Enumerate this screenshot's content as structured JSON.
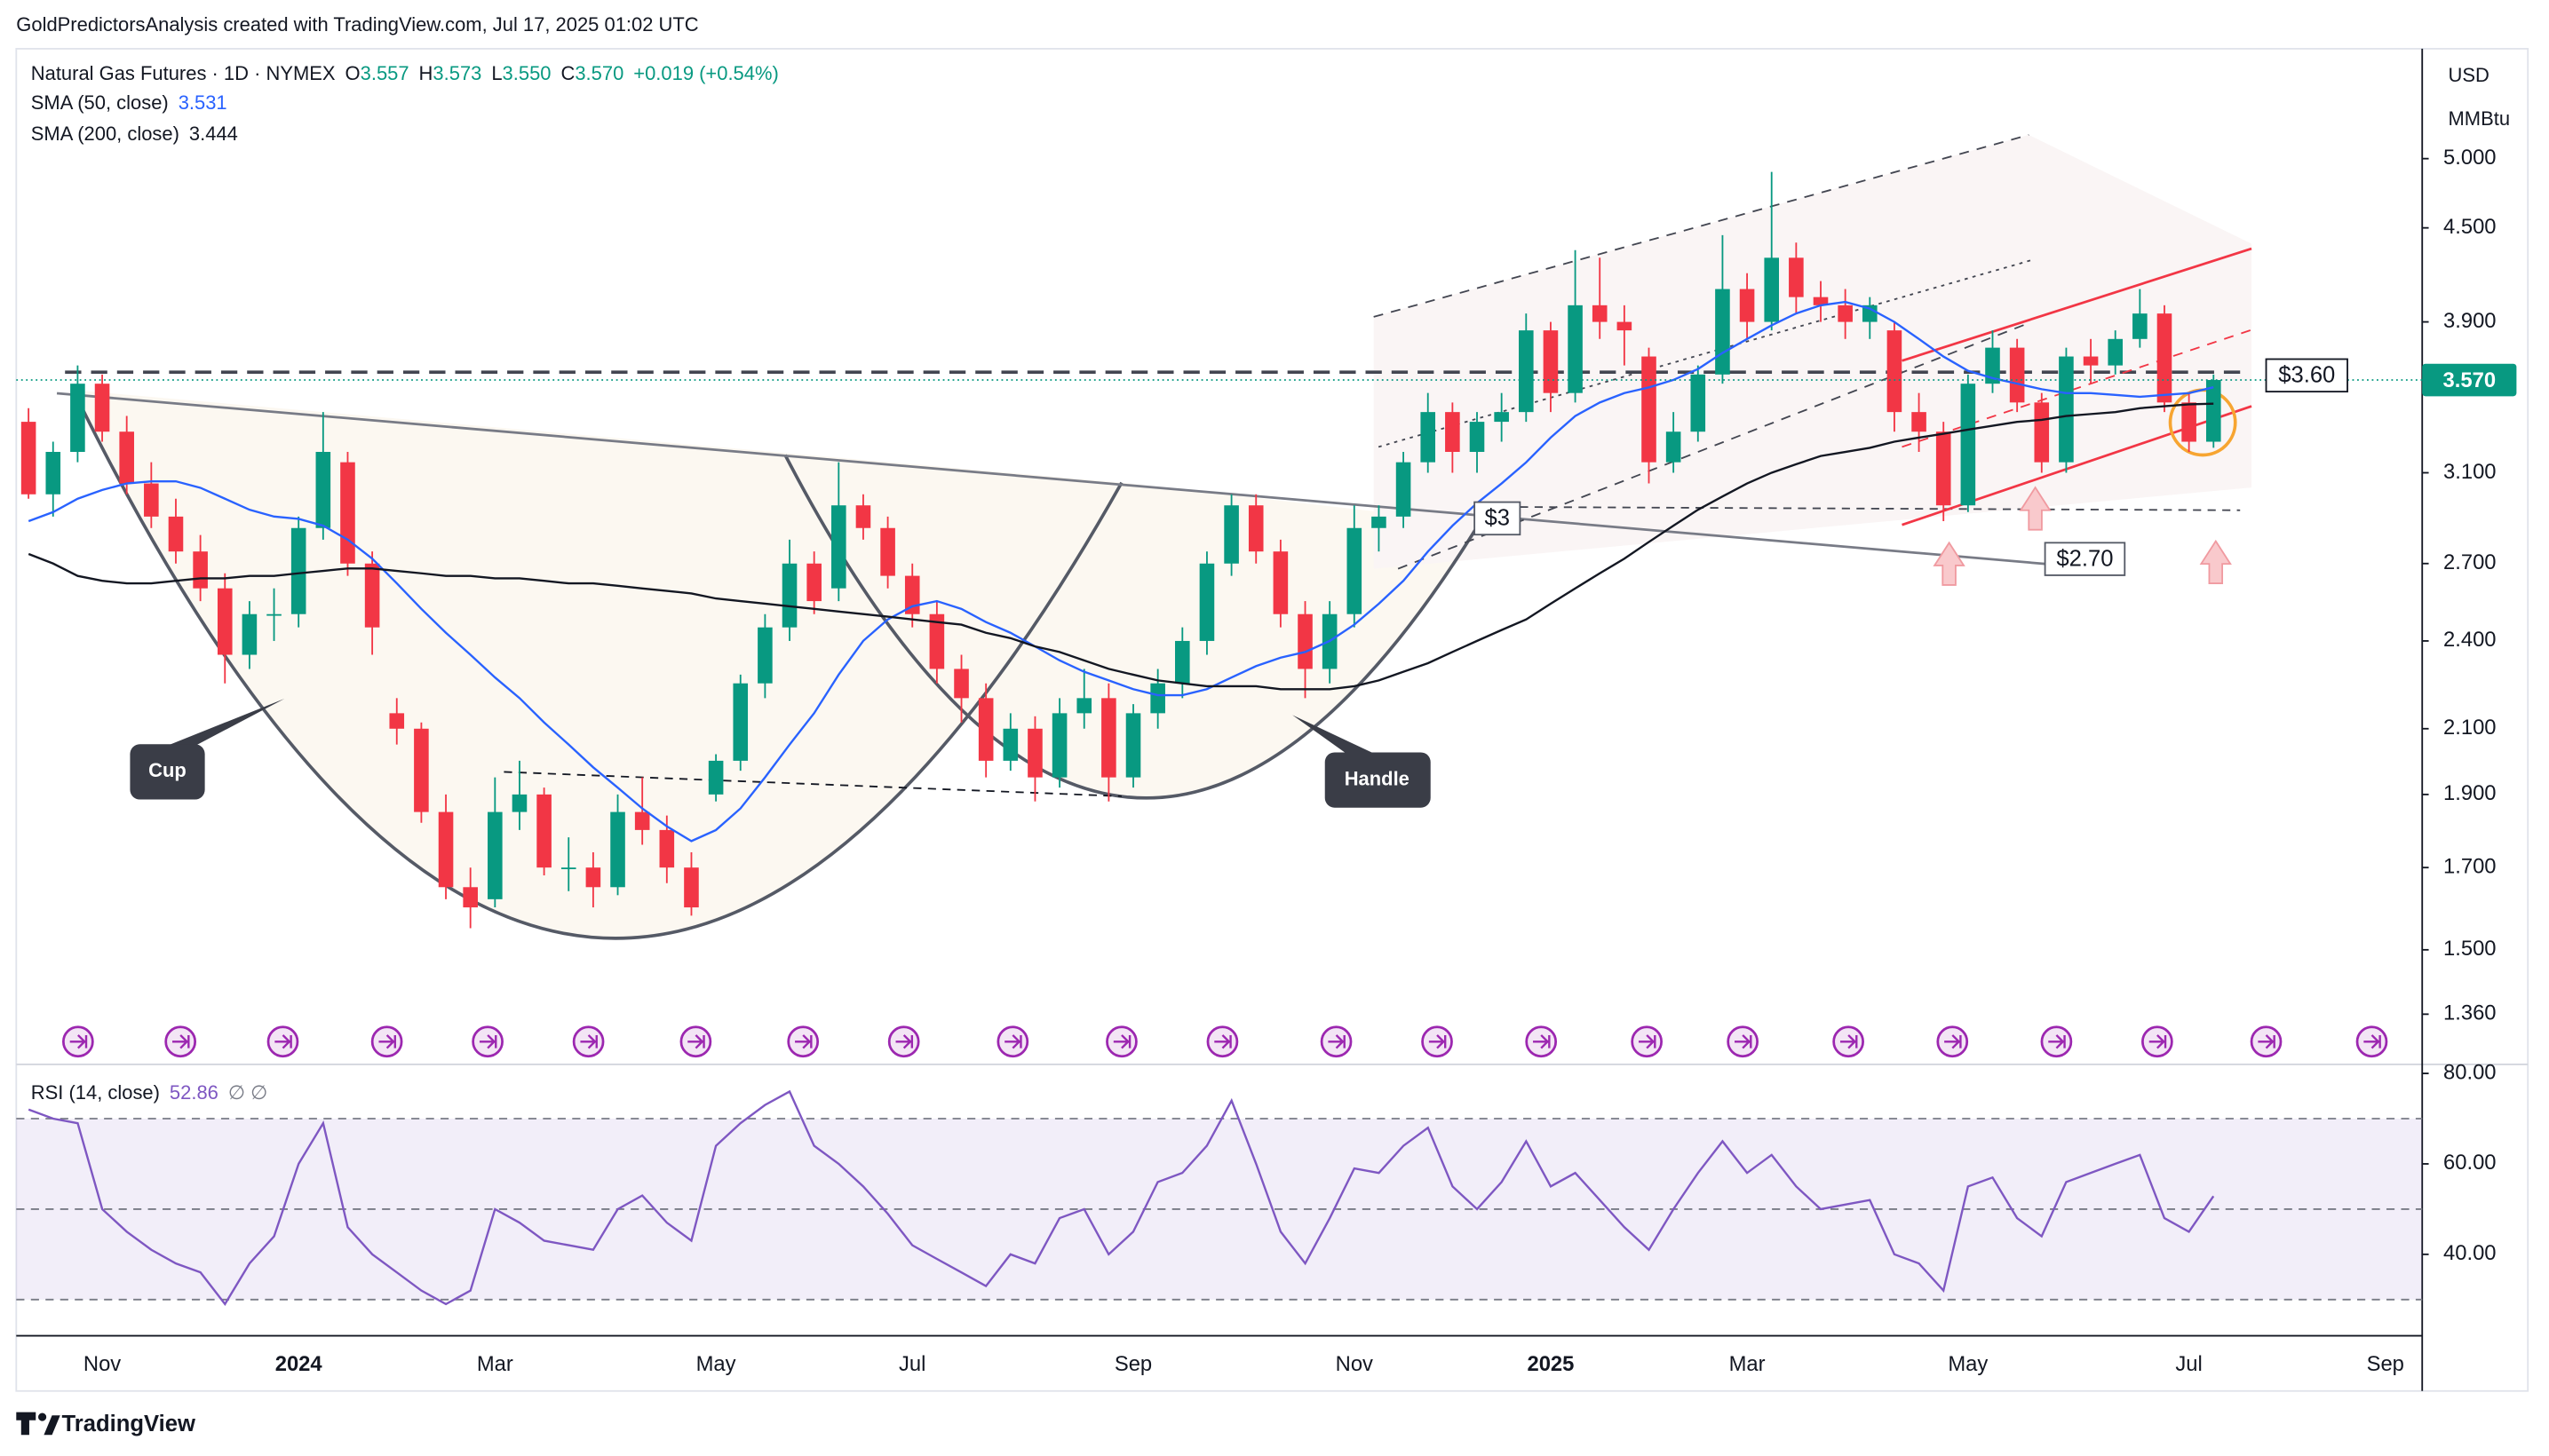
{
  "header": "GoldPredictorsAnalysis created with TradingView.com, Jul 17, 2025 01:02 UTC",
  "footer": "TradingView",
  "chart_data": [
    {
      "type": "candlestick",
      "title": "Natural Gas Futures · 1D · NYMEX",
      "ohlc": [
        {
          "label": "O",
          "text": "3.557"
        },
        {
          "label": "H",
          "text": "3.573"
        },
        {
          "label": "L",
          "text": "3.550"
        },
        {
          "label": "C",
          "text": "3.570"
        }
      ],
      "change": "+0.019 (+0.54%)",
      "currency": "USD",
      "unit": "MMBtu",
      "log_scale": true,
      "up_color": "#089981",
      "down_color": "#f23645",
      "categories": [
        null,
        null,
        null,
        "Nov",
        null,
        null,
        null,
        null,
        null,
        null,
        null,
        "2024",
        null,
        null,
        null,
        null,
        null,
        null,
        null,
        "Mar",
        null,
        null,
        null,
        null,
        null,
        null,
        null,
        null,
        "May",
        null,
        null,
        null,
        null,
        null,
        null,
        null,
        "Jul",
        null,
        null,
        null,
        null,
        null,
        null,
        null,
        null,
        "Sep",
        null,
        null,
        null,
        null,
        null,
        null,
        null,
        null,
        "Nov",
        null,
        null,
        null,
        null,
        null,
        null,
        null,
        "2025",
        null,
        null,
        null,
        null,
        null,
        null,
        null,
        "Mar",
        null,
        null,
        null,
        null,
        null,
        null,
        null,
        null,
        "May",
        null,
        null,
        null,
        null,
        null,
        null,
        null,
        null,
        "Jul",
        null,
        null,
        null,
        null,
        null,
        null,
        null,
        "Sep",
        null
      ],
      "open": [
        3.35,
        3.0,
        3.2,
        3.55,
        3.3,
        3.05,
        2.9,
        2.75,
        2.6,
        2.35,
        2.5,
        2.5,
        2.85,
        3.15,
        2.7,
        2.15,
        2.1,
        1.85,
        1.65,
        1.62,
        1.85,
        1.9,
        1.7,
        1.7,
        1.65,
        1.85,
        1.8,
        1.7,
        1.9,
        2.0,
        2.25,
        2.45,
        2.7,
        2.6,
        2.95,
        2.85,
        2.65,
        2.5,
        2.3,
        2.2,
        2.0,
        2.1,
        1.95,
        2.15,
        2.2,
        1.95,
        2.15,
        2.25,
        2.4,
        2.7,
        2.95,
        2.75,
        2.5,
        2.3,
        2.5,
        2.85,
        2.9,
        3.15,
        3.4,
        3.2,
        3.35,
        3.4,
        3.85,
        3.5,
        4.0,
        3.9,
        3.7,
        3.15,
        3.3,
        3.6,
        4.1,
        3.9,
        4.3,
        4.05,
        4.0,
        3.9,
        3.85,
        3.4,
        3.3,
        2.95,
        3.55,
        3.75,
        3.45,
        3.15,
        3.7,
        3.65,
        3.8,
        3.95,
        3.45,
        3.25,
        null,
        null,
        null,
        null,
        null,
        null,
        null,
        null
      ],
      "high": [
        3.42,
        3.25,
        3.65,
        3.6,
        3.38,
        3.15,
        2.98,
        2.82,
        2.66,
        2.55,
        2.6,
        2.9,
        3.4,
        3.2,
        2.75,
        2.2,
        2.12,
        1.9,
        1.7,
        1.95,
        2.0,
        1.92,
        1.78,
        1.74,
        1.9,
        1.95,
        1.84,
        1.74,
        2.02,
        2.28,
        2.5,
        2.8,
        2.75,
        3.15,
        3.0,
        2.9,
        2.7,
        2.55,
        2.35,
        2.25,
        2.15,
        2.14,
        2.2,
        2.3,
        2.25,
        2.18,
        2.3,
        2.45,
        2.75,
        3.0,
        3.0,
        2.8,
        2.55,
        2.55,
        2.95,
        2.95,
        3.2,
        3.5,
        3.45,
        3.4,
        3.5,
        3.95,
        3.9,
        4.35,
        4.3,
        4.0,
        3.75,
        3.4,
        3.65,
        4.45,
        4.2,
        4.9,
        4.4,
        4.15,
        4.1,
        4.05,
        3.9,
        3.5,
        3.35,
        3.6,
        3.85,
        3.8,
        3.5,
        3.75,
        3.8,
        3.85,
        4.1,
        4.0,
        3.5,
        3.6,
        null,
        null,
        null,
        null,
        null,
        null,
        null,
        null
      ],
      "low": [
        2.98,
        2.9,
        3.15,
        3.25,
        3.0,
        2.85,
        2.7,
        2.55,
        2.25,
        2.3,
        2.4,
        2.45,
        2.8,
        2.65,
        2.35,
        2.05,
        1.82,
        1.62,
        1.55,
        1.6,
        1.8,
        1.68,
        1.64,
        1.6,
        1.63,
        1.76,
        1.66,
        1.58,
        1.88,
        1.97,
        2.2,
        2.4,
        2.5,
        2.55,
        2.8,
        2.6,
        2.45,
        2.25,
        2.12,
        1.95,
        1.97,
        1.88,
        1.92,
        2.1,
        1.88,
        1.92,
        2.1,
        2.2,
        2.35,
        2.65,
        2.7,
        2.45,
        2.2,
        2.25,
        2.45,
        2.75,
        2.85,
        3.1,
        3.1,
        3.1,
        3.25,
        3.35,
        3.4,
        3.45,
        3.8,
        3.65,
        3.05,
        3.1,
        3.25,
        3.55,
        3.8,
        3.85,
        3.95,
        3.9,
        3.8,
        3.8,
        3.3,
        3.2,
        2.88,
        2.92,
        3.5,
        3.4,
        3.1,
        3.1,
        3.55,
        3.6,
        3.75,
        3.4,
        3.2,
        3.22,
        null,
        null,
        null,
        null,
        null,
        null,
        null,
        null
      ],
      "close": [
        3.0,
        3.2,
        3.55,
        3.3,
        3.05,
        2.9,
        2.75,
        2.6,
        2.35,
        2.5,
        2.5,
        2.85,
        3.2,
        2.7,
        2.45,
        2.1,
        1.85,
        1.65,
        1.6,
        1.85,
        1.9,
        1.7,
        1.7,
        1.65,
        1.85,
        1.8,
        1.7,
        1.6,
        2.0,
        2.25,
        2.45,
        2.7,
        2.55,
        2.95,
        2.85,
        2.65,
        2.5,
        2.3,
        2.2,
        2.0,
        2.1,
        1.95,
        2.15,
        2.2,
        1.95,
        2.15,
        2.25,
        2.4,
        2.7,
        2.95,
        2.75,
        2.5,
        2.3,
        2.5,
        2.85,
        2.9,
        3.15,
        3.4,
        3.2,
        3.35,
        3.4,
        3.85,
        3.5,
        4.0,
        3.9,
        3.85,
        3.15,
        3.3,
        3.6,
        4.1,
        3.9,
        4.3,
        4.05,
        4.0,
        3.9,
        4.0,
        3.4,
        3.3,
        2.95,
        3.55,
        3.75,
        3.45,
        3.15,
        3.7,
        3.65,
        3.8,
        3.95,
        3.45,
        3.25,
        3.57,
        null,
        null,
        null,
        null,
        null,
        null,
        null,
        null
      ],
      "series": [
        {
          "name": "SMA (50, close)",
          "last_value": 3.531,
          "color": "#2962ff",
          "values": [
            2.88,
            2.92,
            2.98,
            3.02,
            3.05,
            3.06,
            3.06,
            3.03,
            2.98,
            2.93,
            2.9,
            2.89,
            2.86,
            2.8,
            2.72,
            2.62,
            2.52,
            2.43,
            2.35,
            2.27,
            2.2,
            2.12,
            2.05,
            1.98,
            1.92,
            1.86,
            1.81,
            1.77,
            1.8,
            1.86,
            1.95,
            2.05,
            2.15,
            2.28,
            2.4,
            2.48,
            2.53,
            2.55,
            2.52,
            2.47,
            2.43,
            2.38,
            2.33,
            2.29,
            2.26,
            2.23,
            2.21,
            2.21,
            2.23,
            2.27,
            2.31,
            2.34,
            2.36,
            2.4,
            2.46,
            2.54,
            2.63,
            2.75,
            2.86,
            2.96,
            3.05,
            3.15,
            3.27,
            3.38,
            3.45,
            3.5,
            3.53,
            3.57,
            3.63,
            3.72,
            3.8,
            3.88,
            3.95,
            4.0,
            4.02,
            3.98,
            3.9,
            3.8,
            3.7,
            3.62,
            3.58,
            3.55,
            3.52,
            3.5,
            3.5,
            3.49,
            3.48,
            3.49,
            3.5,
            3.531,
            null,
            null,
            null,
            null,
            null,
            null,
            null,
            null
          ]
        },
        {
          "name": "SMA (200, close)",
          "last_value": 3.444,
          "color": "#131722",
          "values": [
            2.74,
            2.7,
            2.65,
            2.63,
            2.62,
            2.62,
            2.63,
            2.64,
            2.64,
            2.65,
            2.65,
            2.66,
            2.67,
            2.68,
            2.68,
            2.67,
            2.66,
            2.65,
            2.65,
            2.64,
            2.64,
            2.63,
            2.62,
            2.62,
            2.61,
            2.6,
            2.59,
            2.58,
            2.56,
            2.55,
            2.54,
            2.53,
            2.52,
            2.51,
            2.5,
            2.49,
            2.48,
            2.47,
            2.46,
            2.43,
            2.41,
            2.38,
            2.36,
            2.33,
            2.3,
            2.28,
            2.26,
            2.25,
            2.24,
            2.24,
            2.24,
            2.23,
            2.23,
            2.23,
            2.24,
            2.26,
            2.29,
            2.32,
            2.36,
            2.4,
            2.44,
            2.48,
            2.54,
            2.6,
            2.66,
            2.72,
            2.79,
            2.86,
            2.93,
            2.99,
            3.05,
            3.1,
            3.14,
            3.18,
            3.2,
            3.22,
            3.25,
            3.27,
            3.29,
            3.31,
            3.33,
            3.35,
            3.36,
            3.38,
            3.39,
            3.4,
            3.42,
            3.43,
            3.44,
            3.444,
            null,
            null,
            null,
            null,
            null,
            null,
            null,
            null
          ]
        }
      ],
      "ylim": [
        1.26,
        5.91
      ],
      "yticks": [
        {
          "value": 5,
          "label": "5.000"
        },
        {
          "value": 4.5,
          "label": "4.500"
        },
        {
          "value": 3.9,
          "label": "3.900"
        },
        {
          "value": 3.1,
          "label": "3.100"
        },
        {
          "value": 2.7,
          "label": "2.700"
        },
        {
          "value": 2.4,
          "label": "2.400"
        },
        {
          "value": 2.1,
          "label": "2.100"
        },
        {
          "value": 1.9,
          "label": "1.900"
        },
        {
          "value": 1.7,
          "label": "1.700"
        },
        {
          "value": 1.5,
          "label": "1.500"
        },
        {
          "value": 1.36,
          "label": "1.360"
        }
      ],
      "last_price": {
        "value": 3.57,
        "label": "3.570",
        "color": "#089981"
      },
      "annotations": [
        "Cup",
        "Handle",
        "$3",
        "$2.70",
        "$3.60"
      ]
    },
    {
      "type": "line",
      "title": "RSI (14, close)",
      "status": "∅ ∅",
      "series": [
        {
          "name": "RSI",
          "last_value": 52.86,
          "color": "#7e57c2",
          "values": [
            72,
            70,
            69,
            50,
            45,
            41,
            38,
            36,
            29,
            38,
            44,
            60,
            69,
            46,
            40,
            36,
            32,
            29,
            32,
            50,
            47,
            43,
            42,
            41,
            50,
            53,
            47,
            43,
            64,
            69,
            73,
            76,
            64,
            60,
            55,
            49,
            42,
            39,
            36,
            33,
            40,
            38,
            48,
            50,
            40,
            45,
            56,
            58,
            64,
            74,
            60,
            45,
            38,
            48,
            59,
            58,
            64,
            68,
            55,
            50,
            56,
            65,
            55,
            58,
            52,
            46,
            41,
            50,
            58,
            65,
            58,
            62,
            55,
            50,
            51,
            52,
            40,
            38,
            32,
            55,
            57,
            48,
            44,
            56,
            58,
            60,
            62,
            48,
            45,
            52.86,
            null,
            null,
            null,
            null,
            null,
            null,
            null,
            null
          ]
        }
      ],
      "bands": [
        70,
        50,
        30
      ],
      "band_color": "#7e57c2",
      "ylim": [
        22,
        82
      ],
      "yticks": [
        {
          "value": 80,
          "label": "80.00"
        },
        {
          "value": 60,
          "label": "60.00"
        },
        {
          "value": 40,
          "label": "40.00"
        }
      ]
    }
  ]
}
